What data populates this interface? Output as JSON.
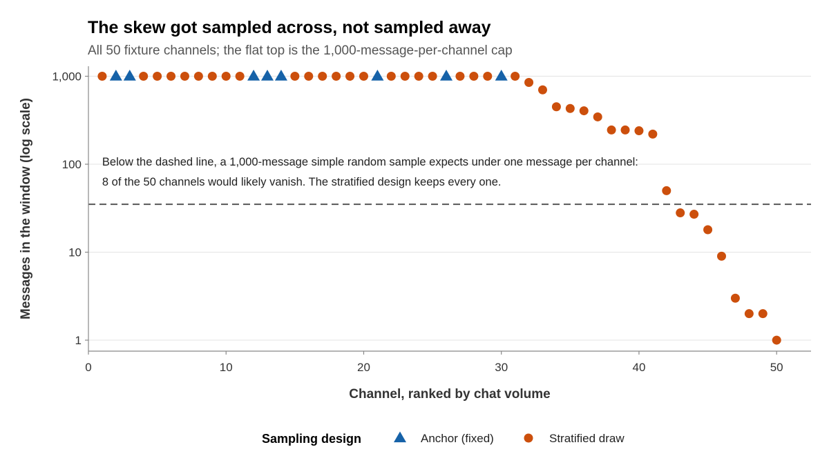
{
  "chart_data": {
    "type": "scatter",
    "title": "The skew got sampled across, not sampled away",
    "subtitle": "All 50 fixture channels; the flat top is the 1,000-message-per-channel cap",
    "xlabel": "Channel, ranked by chat volume",
    "ylabel": "Messages in the window (log scale)",
    "x_scale": "linear",
    "y_scale": "log",
    "xlim": [
      0,
      52.5
    ],
    "ylim": [
      0.75,
      1300
    ],
    "x_ticks": [
      0,
      10,
      20,
      30,
      40,
      50
    ],
    "y_ticks": [
      1,
      10,
      100,
      1000
    ],
    "y_tick_labels": [
      "1",
      "10",
      "100",
      "1,000"
    ],
    "grid": "horizontal",
    "reference_line": {
      "y": 35,
      "style": "dashed"
    },
    "annotation": [
      "Below the dashed line, a 1,000-message simple random sample expects under one message per channel:",
      "8 of the 50 channels would likely vanish. The stratified design keeps every one."
    ],
    "legend": {
      "title": "Sampling design",
      "position": "bottom",
      "entries": [
        {
          "label": "Anchor (fixed)",
          "shape": "triangle",
          "color": "#1662a8"
        },
        {
          "label": "Stratified draw",
          "shape": "circle",
          "color": "#cc4f0c"
        }
      ]
    },
    "series": [
      {
        "name": "Anchor (fixed)",
        "marker": "triangle",
        "color": "#1662a8",
        "x": [
          2,
          3,
          12,
          13,
          14,
          21,
          26,
          30
        ],
        "y": [
          1000,
          1000,
          1000,
          1000,
          1000,
          1000,
          1000,
          1000
        ]
      },
      {
        "name": "Stratified draw",
        "marker": "circle",
        "color": "#cc4f0c",
        "x": [
          1,
          4,
          5,
          6,
          7,
          8,
          9,
          10,
          11,
          15,
          16,
          17,
          18,
          19,
          20,
          22,
          23,
          24,
          25,
          27,
          28,
          29,
          31,
          32,
          33,
          34,
          35,
          36,
          37,
          38,
          39,
          40,
          41,
          42,
          43,
          44,
          45,
          46,
          47,
          48,
          49,
          50
        ],
        "y": [
          1000,
          1000,
          1000,
          1000,
          1000,
          1000,
          1000,
          1000,
          1000,
          1000,
          1000,
          1000,
          1000,
          1000,
          1000,
          1000,
          1000,
          1000,
          1000,
          1000,
          1000,
          1000,
          1000,
          850,
          700,
          450,
          430,
          405,
          345,
          245,
          245,
          240,
          220,
          50,
          28,
          27,
          18,
          9,
          3,
          2,
          2,
          1
        ]
      }
    ]
  }
}
